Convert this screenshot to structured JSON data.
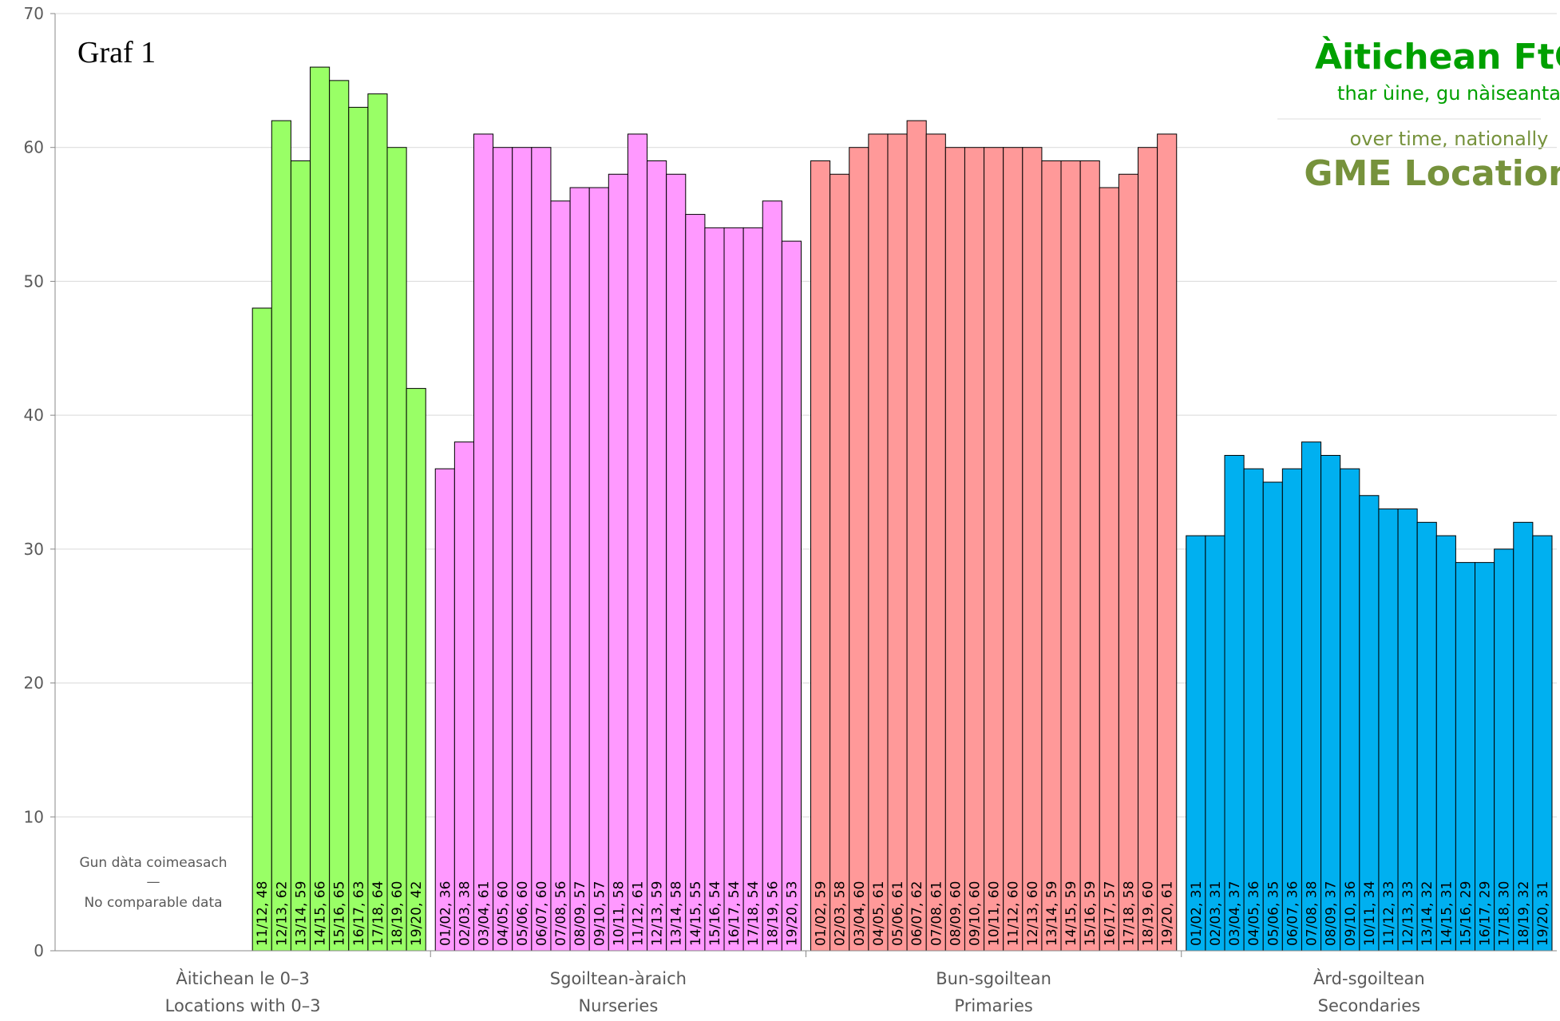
{
  "chart_data": {
    "type": "bar",
    "title": "Graf 1",
    "headline": [
      "Àitichean FtG",
      "thar ùine, gu nàiseanta",
      "over time, nationally",
      "GME Locations"
    ],
    "annotation": [
      "Gun dàta coimeasach",
      "—",
      "No comparable data"
    ],
    "ylim": [
      0,
      70
    ],
    "yticks": [
      0,
      10,
      20,
      30,
      40,
      50,
      60,
      70
    ],
    "grid": true,
    "groups": [
      {
        "label": [
          "Àitichean le 0–3",
          "Locations with 0–3"
        ],
        "color": "#99ff66",
        "values": [
          null,
          null,
          null,
          null,
          null,
          null,
          null,
          null,
          null,
          null,
          48,
          62,
          59,
          66,
          65,
          63,
          64,
          60,
          42
        ],
        "value_labels": [
          null,
          null,
          null,
          null,
          null,
          null,
          null,
          null,
          null,
          null,
          "11/12, 48",
          "12/13, 62",
          "13/14, 59",
          "14/15, 66",
          "15/16, 65",
          "16/17, 63",
          "17/18, 64",
          "18/19, 60",
          "19/20, 42"
        ]
      },
      {
        "label": [
          "Sgoiltean-àraich",
          "Nurseries"
        ],
        "color": "#ff99ff",
        "values": [
          36,
          38,
          61,
          60,
          60,
          60,
          56,
          57,
          57,
          58,
          61,
          59,
          58,
          55,
          54,
          54,
          54,
          56,
          53
        ],
        "value_labels": [
          "01/02, 36",
          "02/03, 38",
          "03/04, 61",
          "04/05, 60",
          "05/06, 60",
          "06/07, 60",
          "07/08, 56",
          "08/09, 57",
          "09/10, 57",
          "10/11, 58",
          "11/12, 61",
          "12/13, 59",
          "13/14, 58",
          "14/15, 55",
          "15/16, 54",
          "16/17, 54",
          "17/18, 54",
          "18/19, 56",
          "19/20, 53"
        ]
      },
      {
        "label": [
          "Bun-sgoiltean",
          "Primaries"
        ],
        "color": "#ff9999",
        "values": [
          59,
          58,
          60,
          61,
          61,
          62,
          61,
          60,
          60,
          60,
          60,
          60,
          59,
          59,
          59,
          57,
          58,
          60,
          61
        ],
        "value_labels": [
          "01/02, 59",
          "02/03, 58",
          "03/04, 60",
          "04/05, 61",
          "05/06, 61",
          "06/07, 62",
          "07/08, 61",
          "08/09, 60",
          "09/10, 60",
          "10/11, 60",
          "11/12, 60",
          "12/13, 60",
          "13/14, 59",
          "14/15, 59",
          "15/16, 59",
          "16/17, 57",
          "17/18, 58",
          "18/19, 60",
          "19/20, 61"
        ]
      },
      {
        "label": [
          "Àrd-sgoiltean",
          "Secondaries"
        ],
        "color": "#00b0f0",
        "values": [
          31,
          31,
          37,
          36,
          35,
          36,
          38,
          37,
          36,
          34,
          33,
          33,
          32,
          31,
          29,
          29,
          30,
          32,
          31
        ],
        "value_labels": [
          "01/02, 31",
          "02/03, 31",
          "03/04, 37",
          "04/05, 36",
          "05/06, 35",
          "06/07, 36",
          "07/08, 38",
          "08/09, 37",
          "09/10, 36",
          "10/11, 34",
          "11/12, 33",
          "12/13, 33",
          "13/14, 32",
          "14/15, 31",
          "15/16, 29",
          "16/17, 29",
          "17/18, 30",
          "18/19, 32",
          "19/20, 31"
        ]
      }
    ]
  }
}
